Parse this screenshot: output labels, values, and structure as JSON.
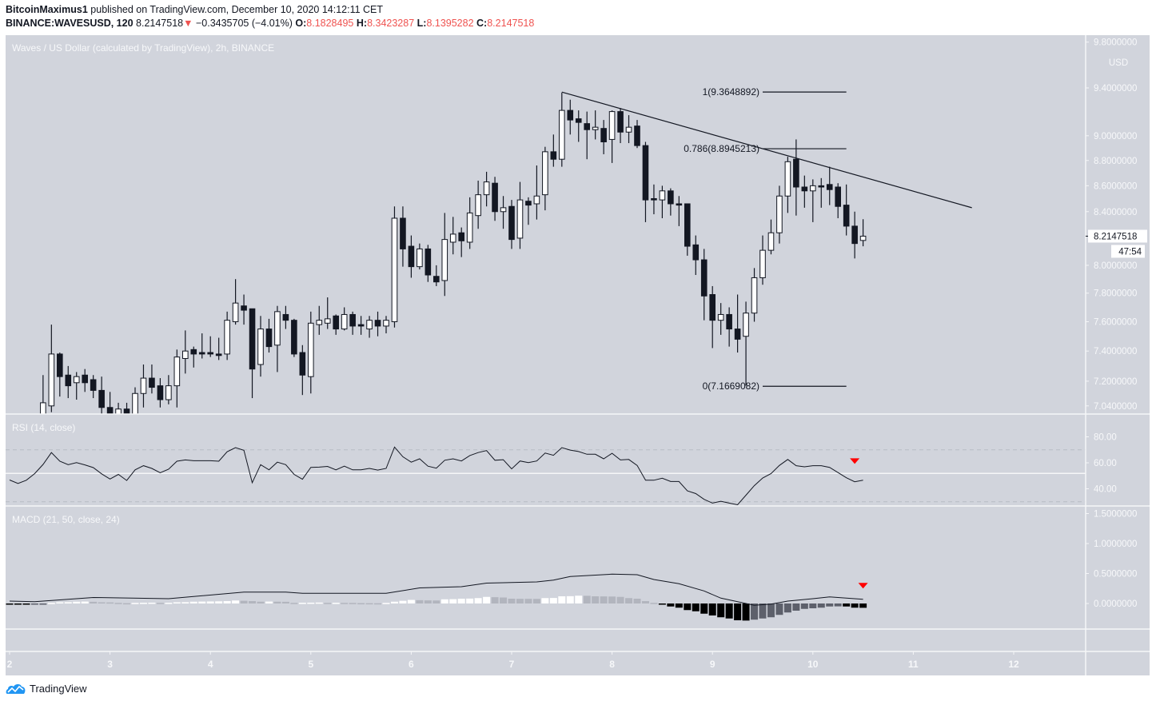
{
  "header": {
    "author": "BitcoinMaximus1",
    "published_text": "published on TradingView.com, December 10, 2020 14:12:11 CET",
    "symbol": "BINANCE:WAVESUSD, 120",
    "last": "8.2147518",
    "change_icon": "triangle-down-icon",
    "change": "−0.3435705 (−4.01%)",
    "o_label": "O:",
    "o": "8.1828495",
    "h_label": "H:",
    "h": "8.3423287",
    "l_label": "L:",
    "l": "8.1395282",
    "c_label": "C:",
    "c": "8.2147518"
  },
  "panes": {
    "price_title": "Waves / US Dollar (calculated by TradingView), 2h, BINANCE",
    "rsi_title": "RSI (14, close)",
    "macd_title": "MACD (21, 50, close, 24)"
  },
  "price_axis": {
    "currency": "USD",
    "ticks": [
      "9.8000000",
      "9.4000000",
      "9.0000000",
      "8.8000000",
      "8.6000000",
      "8.4000000",
      "8.0000000",
      "7.8000000",
      "7.6000000",
      "7.4000000",
      "7.2000000",
      "7.0400000"
    ],
    "last_price_label": "8.2147518",
    "countdown": "47:54",
    "scale": "log"
  },
  "rsi_axis": {
    "ticks": [
      "80.00",
      "60.00",
      "40.00"
    ]
  },
  "macd_axis": {
    "ticks": [
      "1.5000000",
      "1.0000000",
      "0.5000000",
      "0.0000000"
    ]
  },
  "x_axis": {
    "ticks": [
      "2",
      "3",
      "4",
      "5",
      "6",
      "7",
      "8",
      "9",
      "10",
      "11",
      "12"
    ]
  },
  "footer": {
    "brand": "TradingView",
    "logo_icon": "tradingview-cloud-icon"
  },
  "colors": {
    "background": "#d1d4dc",
    "candle_up": "#ffffff",
    "candle_down": "#131722",
    "header_values": "#ef5350",
    "marker": "#ff0000",
    "hist_pos_rising": "#ffffff",
    "hist_pos_falling": "#b2b5be",
    "hist_neg_falling": "#000000",
    "hist_neg_rising": "#5d606b",
    "brand": "#2196f3"
  },
  "chart_data": {
    "type": "candlestick",
    "title": "Waves / US Dollar (calculated by TradingView), 2h, BINANCE",
    "yscale": "log",
    "ylim": [
      7.0,
      9.85
    ],
    "xlim": [
      "Dec 2 00:00",
      "Dec 12 12:00"
    ],
    "grid": false,
    "times": [
      "Dec 2 00:00",
      "Dec 2 02:00",
      "Dec 2 04:00",
      "Dec 2 06:00",
      "Dec 2 08:00",
      "Dec 2 10:00",
      "Dec 2 12:00",
      "Dec 2 14:00",
      "Dec 2 16:00",
      "Dec 2 18:00",
      "Dec 2 20:00",
      "Dec 2 22:00",
      "Dec 3 00:00",
      "Dec 3 02:00",
      "Dec 3 04:00",
      "Dec 3 06:00",
      "Dec 3 08:00",
      "Dec 3 10:00",
      "Dec 3 12:00",
      "Dec 3 14:00",
      "Dec 3 16:00",
      "Dec 3 18:00",
      "Dec 3 20:00",
      "Dec 3 22:00",
      "Dec 4 00:00",
      "Dec 4 02:00",
      "Dec 4 04:00",
      "Dec 4 06:00",
      "Dec 4 08:00",
      "Dec 4 10:00",
      "Dec 4 12:00",
      "Dec 4 14:00",
      "Dec 4 16:00",
      "Dec 4 18:00",
      "Dec 4 20:00",
      "Dec 4 22:00",
      "Dec 5 00:00",
      "Dec 5 02:00",
      "Dec 5 04:00",
      "Dec 5 06:00",
      "Dec 5 08:00",
      "Dec 5 10:00",
      "Dec 5 12:00",
      "Dec 5 14:00",
      "Dec 5 16:00",
      "Dec 5 18:00",
      "Dec 5 20:00",
      "Dec 5 22:00",
      "Dec 6 00:00",
      "Dec 6 02:00",
      "Dec 6 04:00",
      "Dec 6 06:00",
      "Dec 6 08:00",
      "Dec 6 10:00",
      "Dec 6 12:00",
      "Dec 6 14:00",
      "Dec 6 16:00",
      "Dec 6 18:00",
      "Dec 6 20:00",
      "Dec 6 22:00",
      "Dec 7 00:00",
      "Dec 7 02:00",
      "Dec 7 04:00",
      "Dec 7 06:00",
      "Dec 7 08:00",
      "Dec 7 10:00",
      "Dec 7 12:00",
      "Dec 7 14:00",
      "Dec 7 16:00",
      "Dec 7 18:00",
      "Dec 7 20:00",
      "Dec 7 22:00",
      "Dec 8 00:00",
      "Dec 8 02:00",
      "Dec 8 04:00",
      "Dec 8 06:00",
      "Dec 8 08:00",
      "Dec 8 10:00",
      "Dec 8 12:00",
      "Dec 8 14:00",
      "Dec 8 16:00",
      "Dec 8 18:00",
      "Dec 8 20:00",
      "Dec 8 22:00",
      "Dec 9 00:00",
      "Dec 9 02:00",
      "Dec 9 04:00",
      "Dec 9 06:00",
      "Dec 9 08:00",
      "Dec 9 10:00",
      "Dec 9 12:00",
      "Dec 9 14:00",
      "Dec 9 16:00",
      "Dec 9 18:00",
      "Dec 9 20:00",
      "Dec 9 22:00",
      "Dec 10 00:00",
      "Dec 10 02:00",
      "Dec 10 04:00",
      "Dec 10 06:00",
      "Dec 10 08:00",
      "Dec 10 10:00",
      "Dec 10 12:00"
    ],
    "ohlc": [
      null,
      null,
      null,
      null,
      [
        6.92,
        7.24,
        6.87,
        7.06
      ],
      [
        7.04,
        7.58,
        7.0,
        7.38
      ],
      [
        7.38,
        7.39,
        7.1,
        7.23
      ],
      [
        7.24,
        7.3,
        7.09,
        7.17
      ],
      [
        7.19,
        7.26,
        7.08,
        7.23
      ],
      [
        7.24,
        7.28,
        7.13,
        7.19
      ],
      [
        7.21,
        7.24,
        7.09,
        7.14
      ],
      [
        7.14,
        7.23,
        6.99,
        7.03
      ],
      [
        7.03,
        7.13,
        6.9,
        6.95
      ],
      [
        6.95,
        7.06,
        6.91,
        7.02
      ],
      [
        7.02,
        7.06,
        6.92,
        6.97
      ],
      [
        6.97,
        7.16,
        6.93,
        7.12
      ],
      [
        7.12,
        7.31,
        7.03,
        7.22
      ],
      [
        7.22,
        7.31,
        7.12,
        7.16
      ],
      [
        7.17,
        7.22,
        7.03,
        7.08
      ],
      [
        7.08,
        7.24,
        7.05,
        7.17
      ],
      [
        7.17,
        7.41,
        7.03,
        7.36
      ],
      [
        7.35,
        7.54,
        7.25,
        7.4
      ],
      [
        7.41,
        7.43,
        7.29,
        7.38
      ],
      [
        7.39,
        7.52,
        7.35,
        7.38
      ],
      [
        7.39,
        7.5,
        7.36,
        7.38
      ],
      [
        7.38,
        7.49,
        7.34,
        7.37
      ],
      [
        7.38,
        7.67,
        7.34,
        7.61
      ],
      [
        7.6,
        7.9,
        7.58,
        7.73
      ],
      [
        7.71,
        7.79,
        7.58,
        7.68
      ],
      [
        7.69,
        7.69,
        7.09,
        7.28
      ],
      [
        7.31,
        7.64,
        7.23,
        7.55
      ],
      [
        7.55,
        7.62,
        7.39,
        7.43
      ],
      [
        7.44,
        7.71,
        7.26,
        7.67
      ],
      [
        7.65,
        7.71,
        7.55,
        7.61
      ],
      [
        7.61,
        7.62,
        7.36,
        7.38
      ],
      [
        7.39,
        7.44,
        7.11,
        7.24
      ],
      [
        7.23,
        7.67,
        7.12,
        7.59
      ],
      [
        7.58,
        7.71,
        7.51,
        7.61
      ],
      [
        7.59,
        7.77,
        7.55,
        7.62
      ],
      [
        7.64,
        7.65,
        7.51,
        7.55
      ],
      [
        7.55,
        7.7,
        7.54,
        7.65
      ],
      [
        7.65,
        7.67,
        7.51,
        7.57
      ],
      [
        7.58,
        7.64,
        7.51,
        7.57
      ],
      [
        7.55,
        7.64,
        7.49,
        7.61
      ],
      [
        7.61,
        7.67,
        7.5,
        7.57
      ],
      [
        7.57,
        7.64,
        7.52,
        7.61
      ],
      [
        7.6,
        8.44,
        7.56,
        8.35
      ],
      [
        8.35,
        8.44,
        7.99,
        8.12
      ],
      [
        8.14,
        8.22,
        7.91,
        7.99
      ],
      [
        7.99,
        8.16,
        7.97,
        8.12
      ],
      [
        8.12,
        8.15,
        7.88,
        7.93
      ],
      [
        7.92,
        8.0,
        7.85,
        7.88
      ],
      [
        7.89,
        8.39,
        7.78,
        8.19
      ],
      [
        8.17,
        8.36,
        8.08,
        8.23
      ],
      [
        8.24,
        8.28,
        8.06,
        8.18
      ],
      [
        8.17,
        8.51,
        8.12,
        8.39
      ],
      [
        8.37,
        8.64,
        8.27,
        8.53
      ],
      [
        8.53,
        8.71,
        8.44,
        8.63
      ],
      [
        8.62,
        8.67,
        8.33,
        8.4
      ],
      [
        8.4,
        8.52,
        8.27,
        8.43
      ],
      [
        8.44,
        8.49,
        8.12,
        8.19
      ],
      [
        8.2,
        8.63,
        8.12,
        8.49
      ],
      [
        8.48,
        8.51,
        8.3,
        8.45
      ],
      [
        8.46,
        8.76,
        8.34,
        8.52
      ],
      [
        8.53,
        8.91,
        8.41,
        8.87
      ],
      [
        8.87,
        9.01,
        8.75,
        8.81
      ],
      [
        8.81,
        9.36,
        8.75,
        9.21
      ],
      [
        9.21,
        9.3,
        9.01,
        9.13
      ],
      [
        9.14,
        9.21,
        8.95,
        9.11
      ],
      [
        9.1,
        9.2,
        8.81,
        9.05
      ],
      [
        9.05,
        9.21,
        8.97,
        9.07
      ],
      [
        9.06,
        9.13,
        8.85,
        8.95
      ],
      [
        8.97,
        9.21,
        8.78,
        9.2
      ],
      [
        9.2,
        9.23,
        8.94,
        9.03
      ],
      [
        9.03,
        9.17,
        8.94,
        9.07
      ],
      [
        9.08,
        9.13,
        8.9,
        8.92
      ],
      [
        8.92,
        8.95,
        8.32,
        8.49
      ],
      [
        8.5,
        8.61,
        8.38,
        8.49
      ],
      [
        8.49,
        8.6,
        8.35,
        8.56
      ],
      [
        8.56,
        8.58,
        8.37,
        8.46
      ],
      [
        8.46,
        8.52,
        8.29,
        8.45
      ],
      [
        8.46,
        8.46,
        8.07,
        8.14
      ],
      [
        8.15,
        8.22,
        7.93,
        8.04
      ],
      [
        8.04,
        8.12,
        7.61,
        7.78
      ],
      [
        7.79,
        7.85,
        7.42,
        7.61
      ],
      [
        7.61,
        7.73,
        7.51,
        7.65
      ],
      [
        7.65,
        7.7,
        7.43,
        7.55
      ],
      [
        7.55,
        7.79,
        7.39,
        7.48
      ],
      [
        7.5,
        7.74,
        7.17,
        7.66
      ],
      [
        7.66,
        7.98,
        7.6,
        7.91
      ],
      [
        7.91,
        8.22,
        7.86,
        8.11
      ],
      [
        8.11,
        8.34,
        8.08,
        8.24
      ],
      [
        8.24,
        8.6,
        8.16,
        8.52
      ],
      [
        8.52,
        8.83,
        8.39,
        8.79
      ],
      [
        8.81,
        8.97,
        8.37,
        8.59
      ],
      [
        8.59,
        8.68,
        8.43,
        8.56
      ],
      [
        8.56,
        8.65,
        8.32,
        8.6
      ],
      [
        8.6,
        8.66,
        8.43,
        8.59
      ],
      [
        8.61,
        8.75,
        8.45,
        8.57
      ],
      [
        8.59,
        8.62,
        8.35,
        8.44
      ],
      [
        8.45,
        8.61,
        8.22,
        8.29
      ],
      [
        8.29,
        8.4,
        8.05,
        8.16
      ],
      [
        8.1828495,
        8.3423287,
        8.1395282,
        8.2147518
      ]
    ],
    "trendline": [
      [
        "Dec 7 12:00",
        9.3648892
      ],
      [
        "Dec 11 14:00",
        8.43
      ]
    ],
    "fib": {
      "from": "Dec 9 12:00",
      "to": "Dec 10 08:00",
      "levels": [
        {
          "price": 9.3648892,
          "label": "1(9.3648892)"
        },
        {
          "price": 8.8945213,
          "label": "0.786(8.8945213)"
        },
        {
          "price": 7.1669082,
          "label": "0(7.1669082)"
        }
      ]
    },
    "rsi": {
      "title": "RSI (14, close)",
      "ylim": [
        23,
        93
      ],
      "levels": {
        "upper": 70,
        "middle": 50,
        "lower": 30
      },
      "values": [
        46.8,
        44.1,
        46.6,
        51.7,
        58.8,
        67.9,
        61.2,
        58.6,
        60.1,
        58.4,
        56.3,
        51.5,
        47.5,
        51.1,
        46.4,
        54.6,
        57.8,
        55.7,
        52.3,
        55.1,
        61.2,
        62.2,
        61.6,
        61.6,
        61.6,
        61.2,
        68.5,
        71.7,
        69.6,
        44.7,
        58.6,
        54.6,
        60.5,
        58.6,
        51.1,
        47.3,
        56.5,
        56.7,
        57.2,
        54.6,
        57.4,
        54.6,
        54.6,
        55.7,
        54.4,
        55.7,
        72.1,
        64.7,
        60.5,
        63.1,
        57.4,
        55.9,
        62.0,
        63.1,
        61.4,
        65.6,
        67.9,
        69.4,
        62.0,
        62.4,
        55.3,
        61.4,
        60.1,
        61.4,
        67.5,
        65.8,
        71.7,
        69.8,
        68.7,
        66.6,
        66.6,
        63.1,
        67.3,
        62.2,
        62.6,
        58.0,
        46.6,
        46.6,
        48.1,
        45.6,
        45.6,
        38.4,
        36.3,
        31.9,
        29.0,
        30.4,
        29.0,
        27.7,
        35.1,
        42.4,
        48.3,
        51.7,
        58.0,
        62.6,
        57.8,
        56.9,
        57.8,
        57.8,
        56.5,
        52.5,
        48.5,
        45.4,
        46.6
      ],
      "marker": {
        "time": "Dec 10 10:00",
        "value": 61,
        "shape": "triangle-down"
      }
    },
    "macd": {
      "title": "MACD (21, 50, close, 24)",
      "histogram": [
        -0.01,
        -0.012,
        -0.014,
        -0.01,
        -0.005,
        0.01,
        0.02,
        0.022,
        0.03,
        0.032,
        0.028,
        0.02,
        0.018,
        0.01,
        0.005,
        0.01,
        0.012,
        0.014,
        0.01,
        0.012,
        0.02,
        0.022,
        0.03,
        0.032,
        0.034,
        0.036,
        0.04,
        0.05,
        0.045,
        0.04,
        0.03,
        0.032,
        0.03,
        0.028,
        0.01,
        0.012,
        0.014,
        0.016,
        0.01,
        0.012,
        0.01,
        0.009,
        0.006,
        0.005,
        0.004,
        0.01,
        0.03,
        0.045,
        0.06,
        0.055,
        0.052,
        0.05,
        0.07,
        0.072,
        0.08,
        0.082,
        0.09,
        0.11,
        0.105,
        0.1,
        0.08,
        0.078,
        0.077,
        0.076,
        0.09,
        0.092,
        0.12,
        0.122,
        0.13,
        0.128,
        0.12,
        0.118,
        0.116,
        0.11,
        0.09,
        0.08,
        0.04,
        0.01,
        -0.02,
        -0.05,
        -0.07,
        -0.11,
        -0.13,
        -0.17,
        -0.2,
        -0.23,
        -0.25,
        -0.28,
        -0.285,
        -0.27,
        -0.25,
        -0.23,
        -0.19,
        -0.15,
        -0.12,
        -0.09,
        -0.08,
        -0.07,
        -0.05,
        -0.048,
        -0.05,
        -0.07,
        -0.072
      ],
      "line": [
        [
          "Dec 2 00:00",
          0.04
        ],
        [
          "Dec 2 06:00",
          0.03
        ],
        [
          "Dec 2 20:00",
          0.1
        ],
        [
          "Dec 3 14:00",
          0.08
        ],
        [
          "Dec 4 08:00",
          0.19
        ],
        [
          "Dec 4 18:00",
          0.19
        ],
        [
          "Dec 4 22:00",
          0.17
        ],
        [
          "Dec 5 18:00",
          0.17
        ],
        [
          "Dec 6 02:00",
          0.26
        ],
        [
          "Dec 6 12:00",
          0.28
        ],
        [
          "Dec 6 18:00",
          0.34
        ],
        [
          "Dec 7 06:00",
          0.36
        ],
        [
          "Dec 7 10:00",
          0.39
        ],
        [
          "Dec 7 14:00",
          0.45
        ],
        [
          "Dec 8 00:00",
          0.49
        ],
        [
          "Dec 8 06:00",
          0.48
        ],
        [
          "Dec 8 10:00",
          0.4
        ],
        [
          "Dec 8 16:00",
          0.33
        ],
        [
          "Dec 8 22:00",
          0.21
        ],
        [
          "Dec 9 02:00",
          0.09
        ],
        [
          "Dec 9 08:00",
          0.0
        ],
        [
          "Dec 9 10:00",
          -0.03
        ],
        [
          "Dec 9 14:00",
          -0.01
        ],
        [
          "Dec 9 18:00",
          0.04
        ],
        [
          "Dec 10 00:00",
          0.08
        ],
        [
          "Dec 10 04:00",
          0.11
        ],
        [
          "Dec 10 08:00",
          0.09
        ],
        [
          "Dec 10 12:00",
          0.07
        ]
      ],
      "marker": {
        "time": "Dec 10 12:00",
        "value": 0.29,
        "shape": "triangle-down"
      }
    }
  }
}
